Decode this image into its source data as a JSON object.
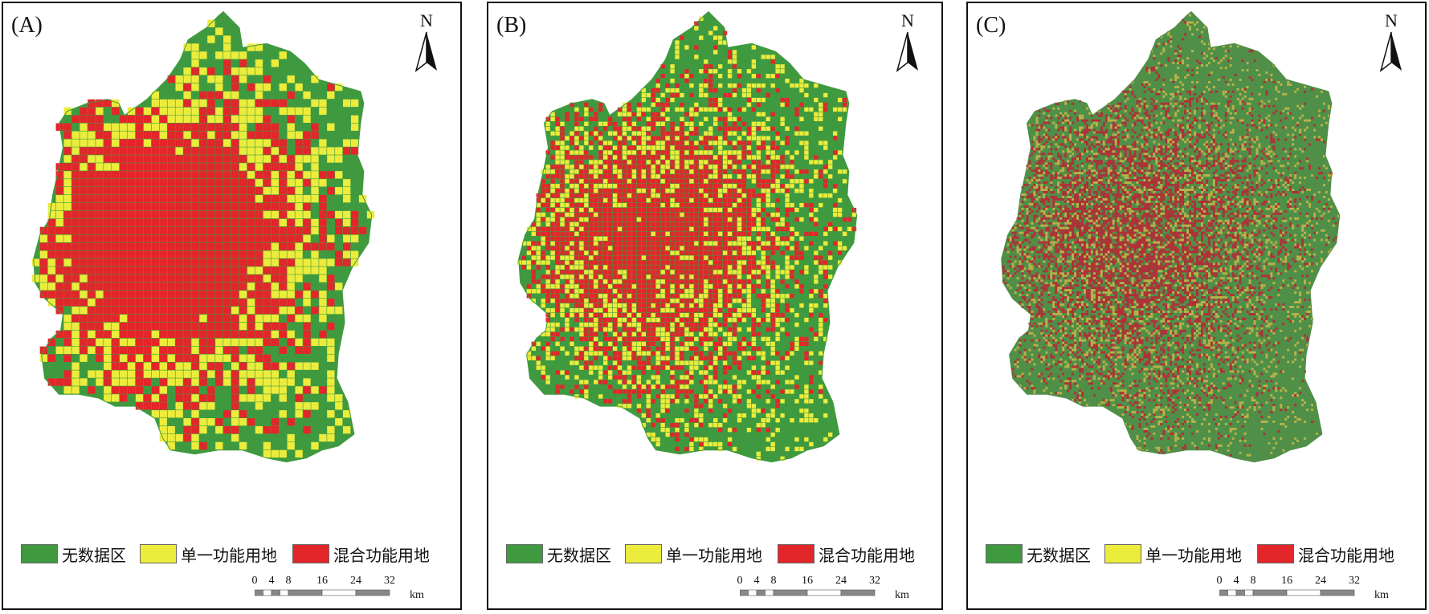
{
  "north_label": "N",
  "legend": [
    {
      "label": "无数据区",
      "color": "#3f9a3f"
    },
    {
      "label": "单一功能用地",
      "color": "#ecec3c"
    },
    {
      "label": "混合功能用地",
      "color": "#e3262a"
    }
  ],
  "scale": {
    "ticks": [
      "0",
      "4",
      "8",
      "16",
      "24",
      "32"
    ],
    "unit": "km"
  },
  "panels": [
    {
      "label": "(A)",
      "resolution": "coarse",
      "colors": {
        "none": "#3f9a3f",
        "single": "#ecec3c",
        "mixed": "#e3262a"
      }
    },
    {
      "label": "(B)",
      "resolution": "medium",
      "colors": {
        "none": "#3f9a3f",
        "single": "#ecec3c",
        "mixed": "#e3262a"
      }
    },
    {
      "label": "(C)",
      "resolution": "fine",
      "colors": {
        "none": "#4f8f48",
        "single": "#b8b348",
        "mixed": "#b03038"
      }
    }
  ]
}
